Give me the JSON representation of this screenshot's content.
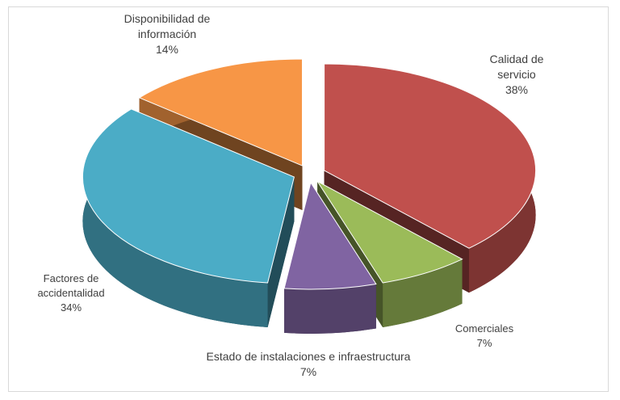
{
  "chart_data": {
    "type": "pie3d",
    "categories": [
      "Calidad de servicio",
      "Comerciales",
      "Estado de instalaciones e infraestructura",
      "Factores de accidentalidad",
      "Disponibilidad de información"
    ],
    "values": [
      38,
      7,
      7,
      34,
      14
    ],
    "value_labels": [
      "38%",
      "7%",
      "7%",
      "34%",
      "14%"
    ],
    "colors": [
      "#c0504d",
      "#9bbb59",
      "#8064a2",
      "#4bacc6",
      "#f79646"
    ]
  }
}
